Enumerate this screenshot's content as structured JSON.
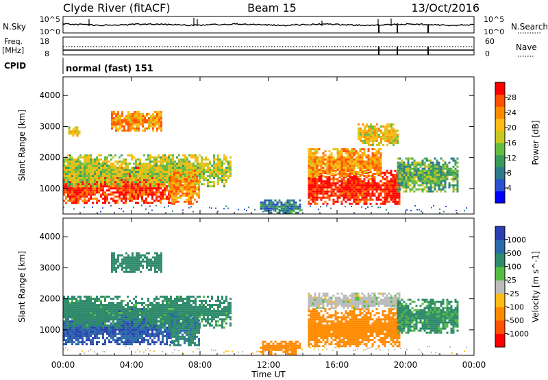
{
  "header": {
    "station": "Clyde River (fitACF)",
    "beam": "Beam 15",
    "date": "13/Oct/2016"
  },
  "noise_panel": {
    "left_label": "N.Sky",
    "right_label": "N.Search",
    "left_ticks": [
      "10^5",
      "10^0"
    ],
    "right_ticks": [
      "10^5",
      "10^0"
    ]
  },
  "freq_panel": {
    "left_label_line1": "Freq.",
    "left_label_line2": "[MHz]",
    "right_label": "Nave",
    "left_ticks": [
      "18",
      "8"
    ],
    "right_ticks": [
      "60",
      "0"
    ]
  },
  "cpid_panel": {
    "label": "CPID",
    "value": "normal (fast) 151"
  },
  "axes": {
    "x_title": "Time UT",
    "x_ticks": [
      "00:00",
      "04:00",
      "08:00",
      "12:00",
      "16:00",
      "20:00",
      "00:00"
    ],
    "y_title": "Slant Range [km]",
    "y_ticks": [
      "1000",
      "2000",
      "3000",
      "4000"
    ]
  },
  "chart_data": [
    {
      "type": "heatmap",
      "name": "Power",
      "x_range_hours": [
        0,
        24
      ],
      "y_range_km": [
        180,
        4600
      ],
      "colorbar": {
        "title": "Power [dB]",
        "ticks": [
          "4",
          "8",
          "12",
          "16",
          "20",
          "24",
          "28"
        ],
        "range": [
          0,
          30
        ],
        "colors": [
          "#0000ff",
          "#2a4fd0",
          "#2e7a8a",
          "#3a9a5a",
          "#66bb44",
          "#c8c820",
          "#ffbb11",
          "#ff8a00",
          "#ff5000",
          "#ff0000"
        ]
      },
      "regions": [
        {
          "t0": 0.0,
          "t1": 6.3,
          "r0": 550,
          "r1": 1700,
          "level": 27
        },
        {
          "t0": 0.0,
          "t1": 9.8,
          "r0": 1100,
          "r1": 2100,
          "level": 16
        },
        {
          "t0": 0.3,
          "t1": 1.0,
          "r0": 2700,
          "r1": 3000,
          "level": 19
        },
        {
          "t0": 2.8,
          "t1": 5.8,
          "r0": 2900,
          "r1": 3500,
          "level": 22
        },
        {
          "t0": 6.2,
          "t1": 8.0,
          "r0": 500,
          "r1": 1600,
          "level": 22
        },
        {
          "t0": 11.5,
          "t1": 13.8,
          "r0": 250,
          "r1": 650,
          "level": 8
        },
        {
          "t0": 14.3,
          "t1": 19.6,
          "r0": 500,
          "r1": 1600,
          "level": 28
        },
        {
          "t0": 14.3,
          "t1": 18.6,
          "r0": 1400,
          "r1": 2300,
          "level": 22
        },
        {
          "t0": 17.2,
          "t1": 19.5,
          "r0": 2400,
          "r1": 3100,
          "level": 18
        },
        {
          "t0": 19.5,
          "t1": 23.0,
          "r0": 900,
          "r1": 2000,
          "level": 12
        }
      ]
    },
    {
      "type": "heatmap",
      "name": "Velocity",
      "x_range_hours": [
        0,
        24
      ],
      "y_range_km": [
        180,
        4600
      ],
      "colorbar": {
        "title": "Velocity [m s^-1]",
        "ticks": [
          "1000",
          "500",
          "100",
          "25",
          "-25",
          "-100",
          "-500",
          "-1000"
        ],
        "colors": [
          "#2a3fb0",
          "#2a6aa8",
          "#2e8a6a",
          "#55bb44",
          "#bbbbbb",
          "#ffbb11",
          "#ff8a00",
          "#ff5000",
          "#ff0000"
        ]
      },
      "regions": [
        {
          "t0": 0.0,
          "t1": 6.3,
          "r0": 550,
          "r1": 1700,
          "level": 950
        },
        {
          "t0": 0.0,
          "t1": 9.8,
          "r0": 1100,
          "r1": 2100,
          "level": 200
        },
        {
          "t0": 2.8,
          "t1": 5.8,
          "r0": 2900,
          "r1": 3500,
          "level": 300
        },
        {
          "t0": 6.2,
          "t1": 8.0,
          "r0": 500,
          "r1": 1600,
          "level": 400
        },
        {
          "t0": 11.5,
          "t1": 13.8,
          "r0": 250,
          "r1": 650,
          "level": -300
        },
        {
          "t0": 14.3,
          "t1": 19.6,
          "r0": 450,
          "r1": 1700,
          "level": -300
        },
        {
          "t0": 14.3,
          "t1": 19.6,
          "r0": 1700,
          "r1": 2200,
          "level": 0
        },
        {
          "t0": 19.5,
          "t1": 23.0,
          "r0": 900,
          "r1": 2000,
          "level": 150
        }
      ]
    }
  ]
}
